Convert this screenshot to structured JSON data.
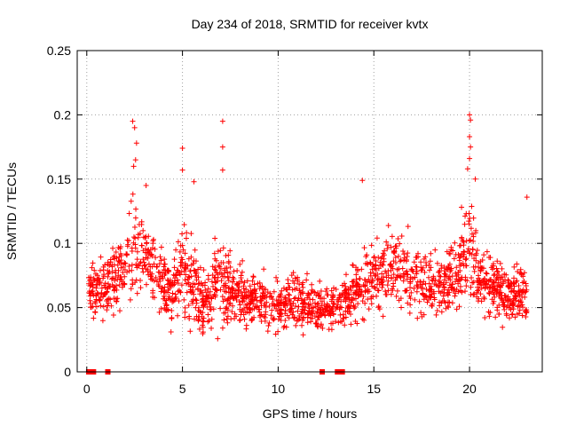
{
  "chart_data": {
    "type": "scatter",
    "title": "Day 234 of 2018, SRMTID for receiver kvtx",
    "xlabel": "GPS time / hours",
    "ylabel": "SRMTID / TECUs",
    "xlim": [
      -0.5,
      23.8
    ],
    "ylim": [
      0,
      0.25
    ],
    "xticks": [
      0,
      5,
      10,
      15,
      20
    ],
    "xtick_labels": [
      "0",
      "5",
      "10",
      "15",
      "20"
    ],
    "yticks": [
      0,
      0.05,
      0.1,
      0.15,
      0.2,
      0.25
    ],
    "ytick_labels": [
      "0",
      "0.05",
      "0.1",
      "0.15",
      "0.2",
      "0.25"
    ],
    "grid": true,
    "marker": "plus",
    "color": "#ff0000",
    "series": [
      {
        "name": "SRMTID",
        "density_profile": {
          "x": [
            0,
            0.5,
            1,
            1.5,
            2,
            2.5,
            3,
            3.5,
            4,
            4.5,
            5,
            5.5,
            6,
            6.5,
            7,
            7.5,
            8,
            8.5,
            9,
            9.5,
            10,
            10.5,
            11,
            11.5,
            12,
            12.5,
            13,
            13.5,
            14,
            14.5,
            15,
            15.5,
            16,
            16.5,
            17,
            17.5,
            18,
            18.5,
            19,
            19.5,
            20,
            20.5,
            21,
            21.5,
            22,
            22.5,
            23
          ],
          "median": [
            0.072,
            0.06,
            0.065,
            0.075,
            0.08,
            0.1,
            0.095,
            0.075,
            0.065,
            0.06,
            0.08,
            0.07,
            0.055,
            0.058,
            0.07,
            0.065,
            0.06,
            0.055,
            0.06,
            0.05,
            0.05,
            0.052,
            0.055,
            0.05,
            0.05,
            0.05,
            0.05,
            0.055,
            0.062,
            0.07,
            0.072,
            0.075,
            0.08,
            0.08,
            0.075,
            0.07,
            0.07,
            0.065,
            0.075,
            0.085,
            0.1,
            0.075,
            0.07,
            0.065,
            0.06,
            0.06,
            0.058
          ],
          "spread": [
            0.012,
            0.02,
            0.022,
            0.025,
            0.03,
            0.04,
            0.03,
            0.025,
            0.022,
            0.022,
            0.035,
            0.028,
            0.02,
            0.022,
            0.035,
            0.024,
            0.02,
            0.02,
            0.02,
            0.018,
            0.018,
            0.018,
            0.02,
            0.018,
            0.016,
            0.016,
            0.016,
            0.018,
            0.022,
            0.025,
            0.025,
            0.024,
            0.025,
            0.025,
            0.025,
            0.022,
            0.022,
            0.022,
            0.025,
            0.03,
            0.04,
            0.025,
            0.022,
            0.022,
            0.02,
            0.02,
            0.022
          ]
        },
        "coverage_start": 0.1,
        "coverage_end": 23.0,
        "peaks": [
          {
            "x": 2.4,
            "y": 0.195
          },
          {
            "x": 2.5,
            "y": 0.19
          },
          {
            "x": 2.6,
            "y": 0.178
          },
          {
            "x": 2.55,
            "y": 0.165
          },
          {
            "x": 2.45,
            "y": 0.16
          },
          {
            "x": 3.1,
            "y": 0.145
          },
          {
            "x": 5.0,
            "y": 0.174
          },
          {
            "x": 5.0,
            "y": 0.157
          },
          {
            "x": 5.6,
            "y": 0.148
          },
          {
            "x": 7.1,
            "y": 0.195
          },
          {
            "x": 7.1,
            "y": 0.175
          },
          {
            "x": 7.1,
            "y": 0.157
          },
          {
            "x": 14.4,
            "y": 0.149
          },
          {
            "x": 20.0,
            "y": 0.2
          },
          {
            "x": 20.05,
            "y": 0.196
          },
          {
            "x": 20.0,
            "y": 0.183
          },
          {
            "x": 20.05,
            "y": 0.175
          },
          {
            "x": 20.0,
            "y": 0.166
          },
          {
            "x": 19.9,
            "y": 0.158
          },
          {
            "x": 20.3,
            "y": 0.15
          },
          {
            "x": 23.0,
            "y": 0.136
          }
        ],
        "zero_markers": [
          0.1,
          0.15,
          0.2,
          0.25,
          0.3,
          0.35,
          1.1,
          12.3,
          13.1,
          13.15,
          13.2,
          13.3,
          13.35
        ]
      }
    ]
  }
}
